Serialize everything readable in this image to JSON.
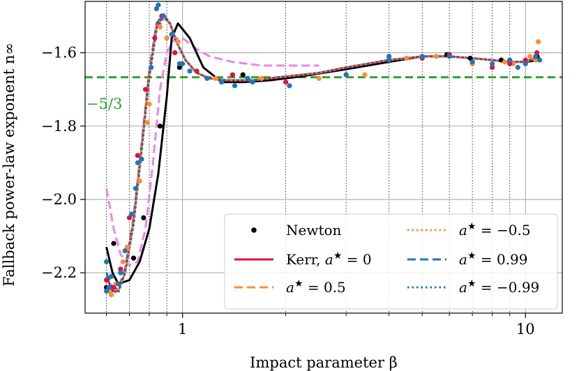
{
  "chart_data": {
    "type": "line",
    "xscale": "log",
    "xlim": [
      0.52,
      12.8
    ],
    "ylim": [
      -2.31,
      -1.46
    ],
    "xlabel": "Impact parameter β",
    "ylabel": "Fallback power-law exponent n∞",
    "x_ticks": [
      {
        "value": 1,
        "label": "1"
      },
      {
        "value": 10,
        "label": "10"
      }
    ],
    "y_ticks": [
      {
        "value": -1.6,
        "label": "−1.6"
      },
      {
        "value": -1.8,
        "label": "−1.8"
      },
      {
        "value": -2.0,
        "label": "−2.0"
      },
      {
        "value": -2.2,
        "label": "−2.2"
      }
    ],
    "minor_x_grid": [
      0.6,
      0.7,
      0.8,
      0.9,
      2,
      3,
      4,
      5,
      6,
      7,
      8,
      9
    ],
    "grid": true,
    "reference_line": {
      "value": -1.6667,
      "label": "−5/3",
      "color": "#2ca02c"
    },
    "series": [
      {
        "name": "Newton",
        "color": "#000000",
        "linestyle": "solid",
        "x": [
          0.6,
          0.625,
          0.65,
          0.7,
          0.75,
          0.8,
          0.85,
          0.9,
          0.93,
          0.97,
          1.05,
          1.15,
          1.3,
          1.5,
          1.8,
          2.2,
          3,
          4,
          5,
          6,
          7,
          8,
          9,
          10,
          11
        ],
        "y": [
          -2.13,
          -2.2,
          -2.23,
          -2.22,
          -2.17,
          -2.08,
          -1.93,
          -1.72,
          -1.56,
          -1.52,
          -1.56,
          -1.64,
          -1.68,
          -1.68,
          -1.675,
          -1.665,
          -1.645,
          -1.625,
          -1.61,
          -1.61,
          -1.615,
          -1.62,
          -1.625,
          -1.625,
          -1.62
        ],
        "points_x": [
          0.6,
          0.63,
          0.65,
          0.72,
          0.77,
          0.86,
          0.98,
          1.5,
          5.9,
          6.9,
          8.5,
          10.8
        ],
        "points_y": [
          -2.24,
          -2.12,
          -2.23,
          -2.16,
          -2.05,
          -1.8,
          -1.64,
          -1.66,
          -1.605,
          -1.615,
          -1.62,
          -1.61
        ]
      },
      {
        "name": "Kerr, a★ = 0",
        "label_text": "Kerr, a",
        "label_suffix": " = 0",
        "color": "#dc143c",
        "linestyle": "solid",
        "x": [
          0.6,
          0.625,
          0.65,
          0.68,
          0.72,
          0.76,
          0.8,
          0.84,
          0.88,
          0.92,
          0.96,
          1.02,
          1.1,
          1.2,
          1.35,
          1.6,
          2,
          2.5,
          3,
          4,
          5,
          6,
          7,
          8,
          9,
          10,
          11
        ],
        "y": [
          -2.21,
          -2.25,
          -2.25,
          -2.2,
          -2.06,
          -1.86,
          -1.66,
          -1.53,
          -1.5,
          -1.52,
          -1.57,
          -1.62,
          -1.655,
          -1.67,
          -1.675,
          -1.675,
          -1.665,
          -1.655,
          -1.64,
          -1.62,
          -1.61,
          -1.61,
          -1.615,
          -1.62,
          -1.625,
          -1.625,
          -1.61
        ],
        "points_x": [
          0.6,
          0.63,
          0.66,
          0.7,
          0.74,
          0.78,
          0.83,
          0.87,
          0.95,
          1.1,
          1.4,
          2.0,
          3.0,
          4.0,
          5.0,
          6.0,
          7.0,
          8.0,
          9.0,
          10.0,
          10.8
        ],
        "points_y": [
          -2.22,
          -2.24,
          -2.19,
          -2.05,
          -1.88,
          -1.7,
          -1.56,
          -1.5,
          -1.6,
          -1.65,
          -1.66,
          -1.68,
          -1.66,
          -1.61,
          -1.615,
          -1.605,
          -1.625,
          -1.64,
          -1.63,
          -1.62,
          -1.6
        ]
      },
      {
        "name": "a★ = 0.5",
        "label_text": "a",
        "label_suffix": " = 0.5",
        "color": "#ff8c32",
        "linestyle": "dashed",
        "x": [
          0.6,
          0.625,
          0.65,
          0.68,
          0.72,
          0.76,
          0.8,
          0.84,
          0.88,
          0.92,
          0.96,
          1.02,
          1.1,
          1.2,
          1.35,
          1.6,
          2,
          2.5,
          3,
          4,
          5,
          6,
          7,
          8,
          9,
          10,
          11
        ],
        "y": [
          -2.21,
          -2.25,
          -2.25,
          -2.2,
          -2.06,
          -1.86,
          -1.66,
          -1.53,
          -1.5,
          -1.52,
          -1.57,
          -1.62,
          -1.655,
          -1.67,
          -1.675,
          -1.675,
          -1.665,
          -1.655,
          -1.64,
          -1.62,
          -1.61,
          -1.61,
          -1.615,
          -1.62,
          -1.625,
          -1.625,
          -1.61
        ],
        "points_x": [
          0.61,
          0.64,
          0.67,
          0.75,
          0.8,
          0.86,
          0.9,
          1.25,
          2.5,
          4.5,
          7.0,
          9.2,
          10.3,
          10.9
        ],
        "points_y": [
          -2.25,
          -2.23,
          -2.17,
          -1.95,
          -1.74,
          -1.53,
          -1.56,
          -1.67,
          -1.67,
          -1.615,
          -1.63,
          -1.63,
          -1.61,
          -1.57
        ]
      },
      {
        "name": "a★ = −0.5",
        "label_text": "a",
        "label_suffix": " = −0.5",
        "color": "#ff8c32",
        "linestyle": "dotted",
        "x": [
          0.6,
          0.625,
          0.65,
          0.68,
          0.72,
          0.76,
          0.8,
          0.84,
          0.88,
          0.92,
          0.96,
          1.02,
          1.1,
          1.2,
          1.35,
          1.6,
          2,
          2.5,
          3,
          4,
          5,
          6,
          7,
          8,
          9,
          10,
          11
        ],
        "y": [
          -2.21,
          -2.25,
          -2.25,
          -2.2,
          -2.06,
          -1.86,
          -1.66,
          -1.53,
          -1.5,
          -1.52,
          -1.57,
          -1.62,
          -1.655,
          -1.67,
          -1.675,
          -1.675,
          -1.665,
          -1.655,
          -1.64,
          -1.62,
          -1.61,
          -1.61,
          -1.615,
          -1.62,
          -1.625,
          -1.625,
          -1.61
        ],
        "points_x": [
          0.62,
          0.69,
          0.79,
          0.97,
          1.7,
          3.4,
          5.5,
          8.7,
          10.7
        ],
        "points_y": [
          -2.26,
          -2.13,
          -1.79,
          -1.57,
          -1.67,
          -1.66,
          -1.61,
          -1.625,
          -1.62
        ]
      },
      {
        "name": "a★ = 0.99",
        "label_text": "a",
        "label_suffix": " = 0.99",
        "color": "#1f77b4",
        "linestyle": "dashed",
        "x": [
          0.6,
          0.625,
          0.65,
          0.68,
          0.72,
          0.76,
          0.8,
          0.84,
          0.88,
          0.92,
          0.96,
          1.02,
          1.1,
          1.2,
          1.35,
          1.6,
          2,
          2.5,
          3,
          4,
          5,
          6,
          7,
          8,
          9,
          10,
          11
        ],
        "y": [
          -2.2,
          -2.24,
          -2.245,
          -2.19,
          -2.05,
          -1.85,
          -1.65,
          -1.52,
          -1.495,
          -1.52,
          -1.57,
          -1.62,
          -1.655,
          -1.67,
          -1.675,
          -1.675,
          -1.665,
          -1.655,
          -1.64,
          -1.62,
          -1.61,
          -1.61,
          -1.615,
          -1.62,
          -1.625,
          -1.625,
          -1.61
        ],
        "points_x": [
          0.6,
          0.6,
          0.62,
          0.65,
          0.68,
          0.71,
          0.73,
          0.76,
          0.81,
          0.85,
          0.88,
          0.93,
          0.98,
          1.05,
          1.18,
          1.3,
          1.42,
          1.55,
          2.05,
          3.0,
          4.0,
          5.0,
          6.0,
          7.0,
          8.0,
          9.0,
          10.0,
          10.7,
          11.0
        ],
        "points_y": [
          -2.17,
          -2.25,
          -2.21,
          -2.23,
          -2.14,
          -2.04,
          -1.97,
          -1.89,
          -1.64,
          -1.47,
          -1.5,
          -1.55,
          -1.63,
          -1.65,
          -1.67,
          -1.68,
          -1.69,
          -1.67,
          -1.69,
          -1.66,
          -1.61,
          -1.61,
          -1.61,
          -1.625,
          -1.63,
          -1.62,
          -1.63,
          -1.61,
          -1.62
        ]
      },
      {
        "name": "a★ = −0.99",
        "label_text": "a",
        "label_suffix": " = −0.99",
        "color": "#1f77b4",
        "linestyle": "dotted",
        "x": [
          0.6,
          0.625,
          0.65,
          0.68,
          0.72,
          0.76,
          0.8,
          0.84,
          0.88,
          0.92,
          0.96,
          1.02,
          1.1,
          1.2,
          1.35,
          1.6,
          2,
          2.5,
          3,
          4,
          5,
          6,
          7,
          8,
          9,
          10,
          11
        ],
        "y": [
          -2.21,
          -2.25,
          -2.255,
          -2.2,
          -2.07,
          -1.87,
          -1.67,
          -1.54,
          -1.505,
          -1.52,
          -1.57,
          -1.62,
          -1.655,
          -1.67,
          -1.675,
          -1.675,
          -1.665,
          -1.655,
          -1.64,
          -1.62,
          -1.61,
          -1.61,
          -1.615,
          -1.62,
          -1.625,
          -1.625,
          -1.61
        ],
        "points_x": [
          0.61,
          0.66,
          0.74,
          0.84,
          1.0,
          1.6,
          4.0,
          6.0,
          9.5
        ],
        "points_y": [
          -2.24,
          -2.2,
          -1.9,
          -1.48,
          -1.63,
          -1.68,
          -1.62,
          -1.61,
          -1.64
        ]
      },
      {
        "name": "unlabeled",
        "color": "#ee82ee",
        "linestyle": "dashed",
        "x": [
          0.6,
          0.63,
          0.66,
          0.7,
          0.74,
          0.78,
          0.82,
          0.86,
          0.9,
          0.95,
          1.0,
          1.1,
          1.2,
          1.4,
          1.7,
          2.1,
          2.5
        ],
        "y": [
          -1.97,
          -2.08,
          -2.15,
          -2.18,
          -2.17,
          -2.08,
          -1.9,
          -1.7,
          -1.6,
          -1.56,
          -1.56,
          -1.59,
          -1.61,
          -1.625,
          -1.635,
          -1.635,
          -1.635
        ]
      }
    ],
    "legend": {
      "position": "lower-right",
      "columns": 2,
      "star_glyph": "★"
    }
  }
}
